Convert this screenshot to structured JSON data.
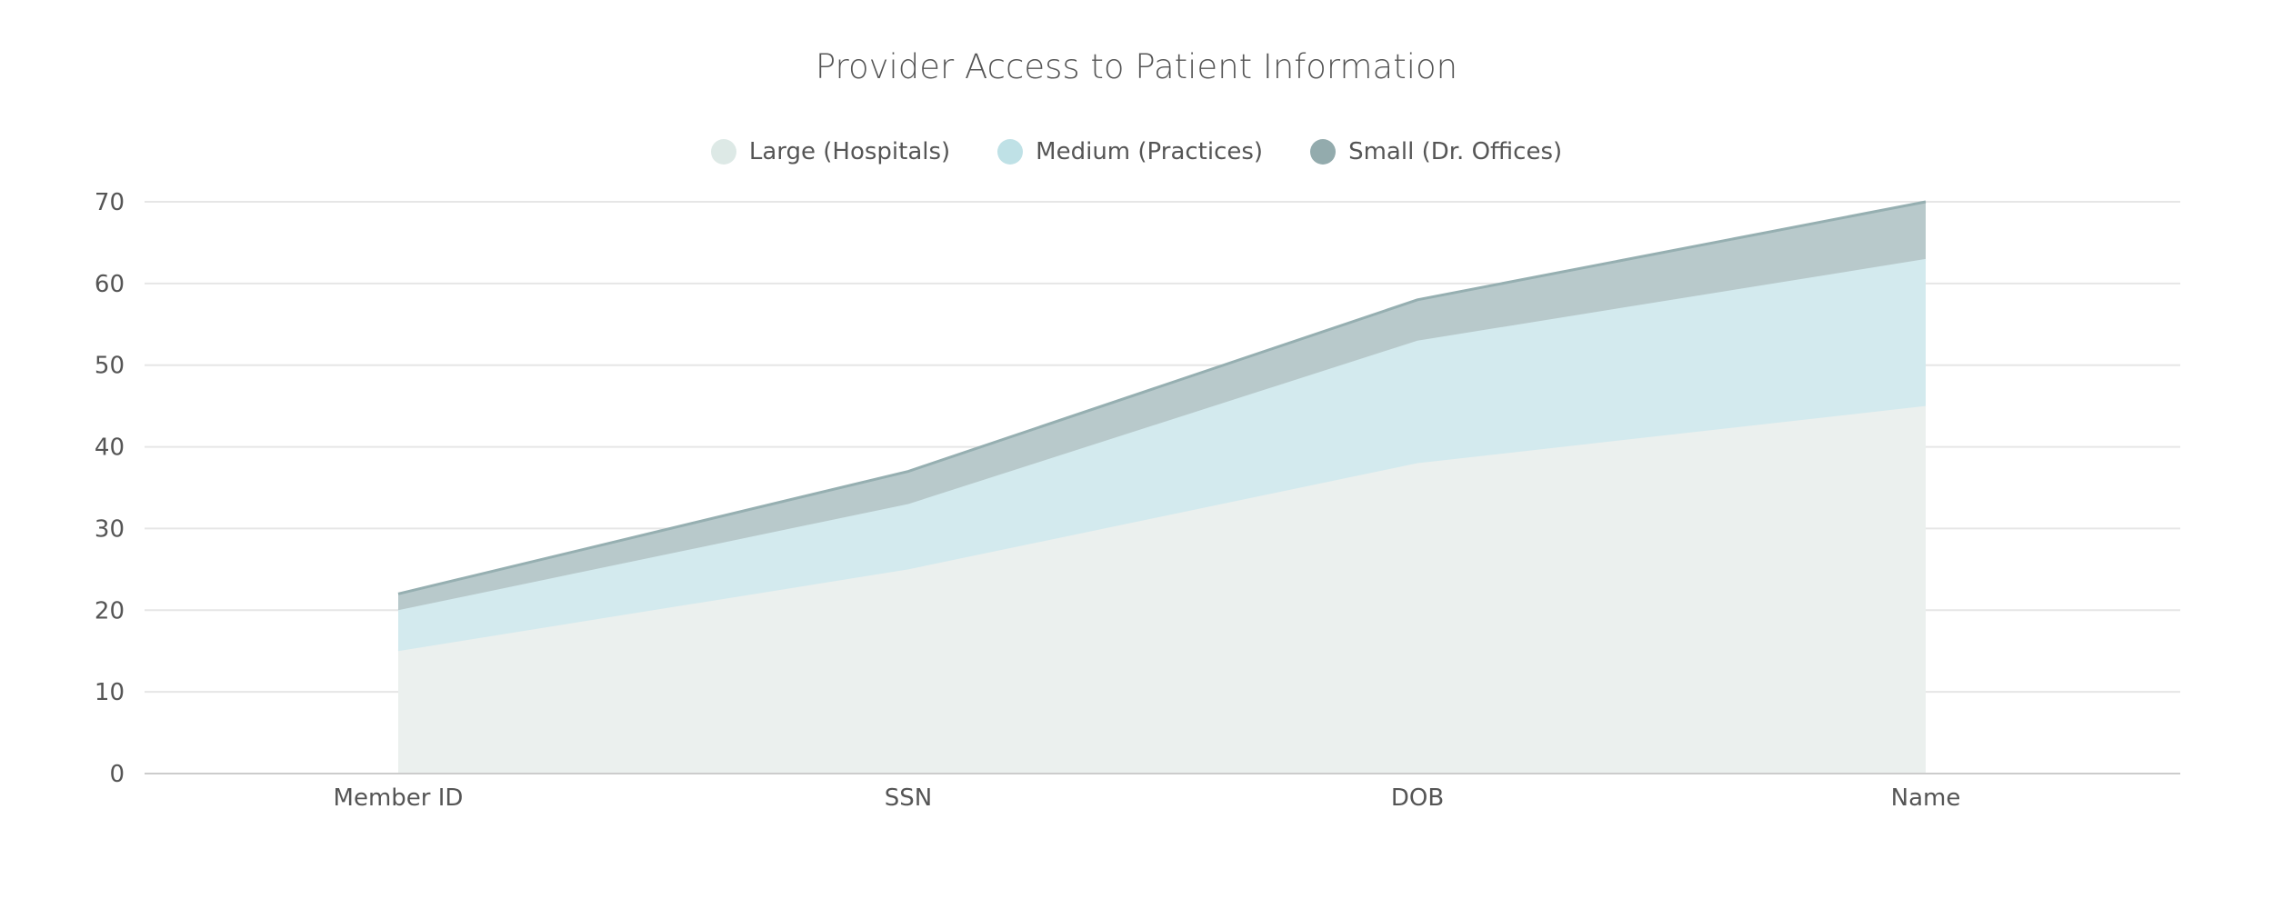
{
  "chart_data": {
    "type": "area",
    "stacked": true,
    "title": "Provider Access to Patient Information",
    "xlabel": "",
    "ylabel": "",
    "categories": [
      "Member ID",
      "SSN",
      "DOB",
      "Name"
    ],
    "series": [
      {
        "name": "Large (Hospitals)",
        "values": [
          15,
          25,
          38,
          45
        ],
        "color": "#ebf0ee",
        "legend_color": "#dde9e6"
      },
      {
        "name": "Medium (Practices)",
        "values": [
          5,
          8,
          15,
          18
        ],
        "color": "#d3eaee",
        "legend_color": "#bfe1e6"
      },
      {
        "name": "Small (Dr. Offices)",
        "values": [
          2,
          4,
          5,
          7
        ],
        "color": "#b8c9cb",
        "legend_color": "#93abad",
        "stroke": "#96afb1"
      }
    ],
    "ylim": [
      0,
      70
    ],
    "yticks": [
      "0",
      "10",
      "20",
      "30",
      "40",
      "50",
      "60",
      "70"
    ],
    "grid": true,
    "legend_position": "top-center"
  }
}
